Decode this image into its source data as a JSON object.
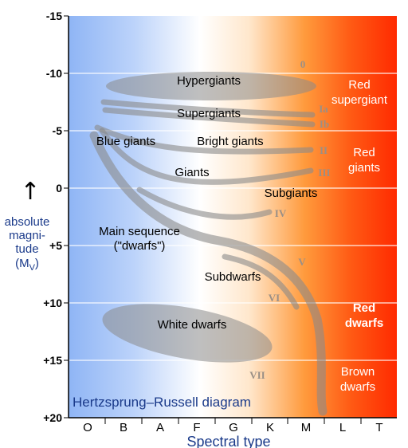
{
  "title": "Hertzsprung–Russell diagram",
  "y_axis": {
    "ticks": [
      "-15",
      "-10",
      "-5",
      "0",
      "+5",
      "+10",
      "+15",
      "+20"
    ],
    "title_lines": [
      "absolute",
      "magni-",
      "tude"
    ],
    "title_symbol": "M",
    "title_subscript": "V",
    "arrow": "↑"
  },
  "x_axis": {
    "ticks": [
      "O",
      "B",
      "A",
      "F",
      "G",
      "K",
      "M",
      "L",
      "T"
    ],
    "title": "Spectral type"
  },
  "regions": {
    "hypergiants": "Hypergiants",
    "supergiants": "Supergiants",
    "blue_giants": "Blue giants",
    "bright_giants": "Bright giants",
    "giants": "Giants",
    "subgiants": "Subgiants",
    "main_sequence_1": "Main sequence",
    "main_sequence_2": "(\"dwarfs\")",
    "subdwarfs": "Subdwarfs",
    "white_dwarfs": "White dwarfs"
  },
  "side_labels": {
    "red_supergiant_1": "Red",
    "red_supergiant_2": "supergiant",
    "red_giants_1": "Red",
    "red_giants_2": "giants",
    "red_dwarfs_1": "Red",
    "red_dwarfs_2": "dwarfs",
    "brown_dwarfs_1": "Brown",
    "brown_dwarfs_2": "dwarfs"
  },
  "luminosity_classes": {
    "c0": "0",
    "ia": "Ia",
    "ib": "Ib",
    "ii": "II",
    "iii": "III",
    "iv": "IV",
    "v": "V",
    "vi": "VI",
    "vii": "VII"
  },
  "colors": {
    "blue": "#8fb5f5",
    "white": "#ffffff",
    "orange": "#ff9a3c",
    "red": "#ff2a00",
    "band_gray": "#8a8a8a"
  }
}
